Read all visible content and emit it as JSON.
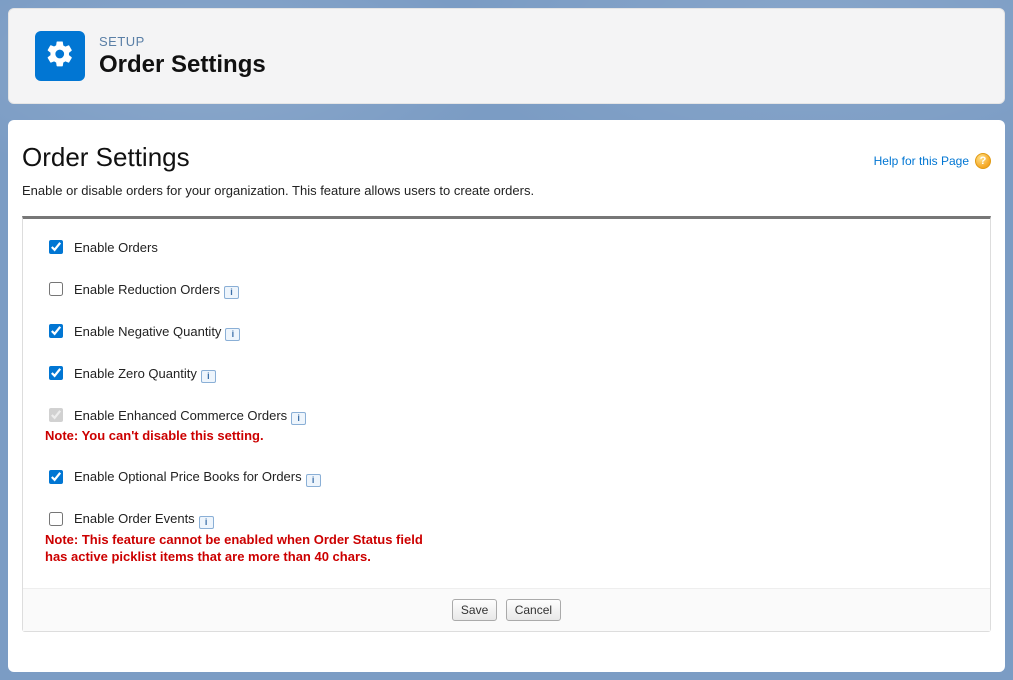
{
  "header": {
    "breadcrumb": "SETUP",
    "title": "Order Settings"
  },
  "page": {
    "title": "Order Settings",
    "description": "Enable or disable orders for your organization. This feature allows users to create orders.",
    "help_link_label": "Help for this Page"
  },
  "settings": [
    {
      "key": "enable_orders",
      "label": "Enable Orders",
      "checked": true,
      "disabled": false,
      "has_info": false
    },
    {
      "key": "enable_reduction_orders",
      "label": "Enable Reduction Orders",
      "checked": false,
      "disabled": false,
      "has_info": true
    },
    {
      "key": "enable_negative_qty",
      "label": "Enable Negative Quantity",
      "checked": true,
      "disabled": false,
      "has_info": true
    },
    {
      "key": "enable_zero_qty",
      "label": "Enable Zero Quantity",
      "checked": true,
      "disabled": false,
      "has_info": true
    },
    {
      "key": "enable_enhanced_commerce",
      "label": "Enable Enhanced Commerce Orders",
      "checked": true,
      "disabled": true,
      "has_info": true,
      "note": "Note: You can't disable this setting."
    },
    {
      "key": "enable_optional_pb",
      "label": "Enable Optional Price Books for Orders",
      "checked": true,
      "disabled": false,
      "has_info": true
    },
    {
      "key": "enable_order_events",
      "label": "Enable Order Events",
      "checked": false,
      "disabled": false,
      "has_info": true,
      "note": "Note: This feature cannot be enabled when Order Status field has active picklist items that are more than 40 chars."
    }
  ],
  "buttons": {
    "save": "Save",
    "cancel": "Cancel"
  },
  "colors": {
    "accent": "#0176d3",
    "note_red": "#cc0000",
    "breadcrumb": "#5a7fa6"
  }
}
